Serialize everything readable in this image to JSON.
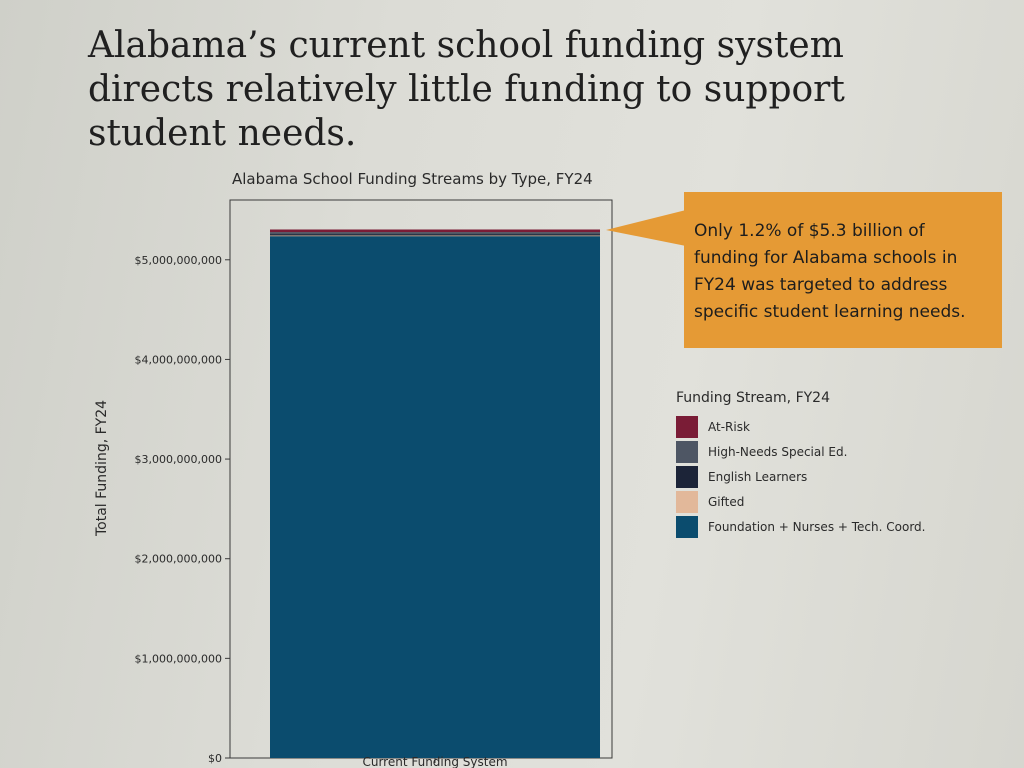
{
  "headline": "Alabama’s current school funding system directs relatively little funding to support student needs.",
  "callout": {
    "text": "Only 1.2% of $5.3 billion of funding for Alabama schools in FY24 was targeted to address specific student learning needs.",
    "color": "#e59a35"
  },
  "chart_data": {
    "type": "bar",
    "stacked": true,
    "title": "Alabama School Funding Streams by Type, FY24",
    "xlabel": "",
    "ylabel": "Total Funding, FY24",
    "categories": [
      "Current Funding System"
    ],
    "ylim": [
      0,
      5600000000
    ],
    "yticks": [
      0,
      1000000000,
      2000000000,
      3000000000,
      4000000000,
      5000000000
    ],
    "ytick_labels": [
      "$0",
      "$1,000,000,000",
      "$2,000,000,000",
      "$3,000,000,000",
      "$4,000,000,000",
      "$5,000,000,000"
    ],
    "grid": false,
    "legend_title": "Funding Stream, FY24",
    "legend_position": "right",
    "series": [
      {
        "name": "Foundation + Nurses + Tech. Coord.",
        "values": [
          5240000000
        ],
        "color": "#0b4c6e"
      },
      {
        "name": "Gifted",
        "values": [
          4000000
        ],
        "color": "#e2b89a"
      },
      {
        "name": "English Learners",
        "values": [
          14000000
        ],
        "color": "#1c2438"
      },
      {
        "name": "High-Needs Special Ed.",
        "values": [
          20000000
        ],
        "color": "#4e5664"
      },
      {
        "name": "At-Risk",
        "values": [
          26000000
        ],
        "color": "#7a1c36"
      }
    ],
    "legend_order": [
      "At-Risk",
      "High-Needs Special Ed.",
      "English Learners",
      "Gifted",
      "Foundation + Nurses + Tech. Coord."
    ]
  }
}
